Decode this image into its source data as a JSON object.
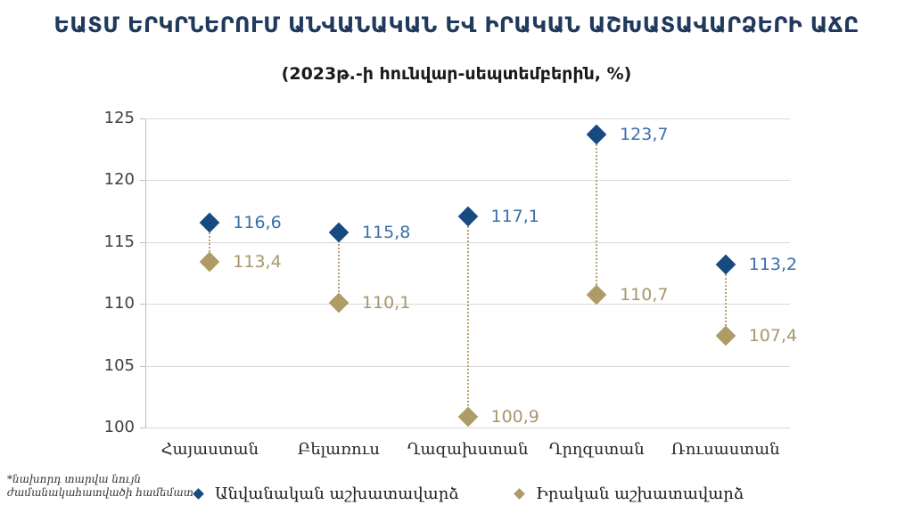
{
  "title": "ԵԱՏՄ ԵՐԿՐՆԵՐՈՒՄ ԱՆՎԱՆԱԿԱՆ ԵՎ ԻՐԱԿԱՆ ԱՇԽԱՏԱՎԱՐՁԵՐԻ ԱՃԸ",
  "subtitle": "(2023թ.-ի հունվար-սեպտեմբերին, %)",
  "footnote": {
    "line1": "*նախորդ տարվա նույն",
    "line2": "ժամանակահատվածի համեմատ"
  },
  "chart_data": {
    "type": "scatter",
    "title": "ԵԱՏՄ ԵՐԿՐՆԵՐՈՒՄ ԱՆՎԱՆԱԿԱՆ ԵՎ ԻՐԱԿԱՆ ԱՇԽԱՏԱՎԱՐՁԵՐԻ ԱՃԸ",
    "subtitle": "(2023թ.-ի հունվար-սեպտեմբերին, %)",
    "categories": [
      "Հայաստան",
      "Բելառուս",
      "Ղազախստան",
      "Ղրղզստան",
      "Ռուսաստան"
    ],
    "series": [
      {
        "name": "Անվանական աշխատավարձ",
        "values": [
          116.6,
          115.8,
          117.1,
          123.7,
          113.2
        ],
        "labels": [
          "116,6",
          "115,8",
          "117,1",
          "123,7",
          "113,2"
        ],
        "marker": "diamond",
        "marker_color": "#164a80",
        "label_color": "#3a6fa9"
      },
      {
        "name": "Իրական աշխատավարձ",
        "values": [
          113.4,
          110.1,
          100.9,
          110.7,
          107.4
        ],
        "labels": [
          "113,4",
          "110,1",
          "100,9",
          "110,7",
          "107,4"
        ],
        "marker": "diamond",
        "marker_color": "#ae9c66",
        "label_color": "#a6976b"
      }
    ],
    "connector_color": "#b5a375",
    "ylim": [
      100,
      125
    ],
    "ytick_step": 5,
    "yticks": [
      "100",
      "105",
      "110",
      "115",
      "120",
      "125"
    ],
    "grid": true,
    "gridline_color": "#d9d9d9",
    "legend_position": "bottom",
    "decimal_separator": ","
  }
}
